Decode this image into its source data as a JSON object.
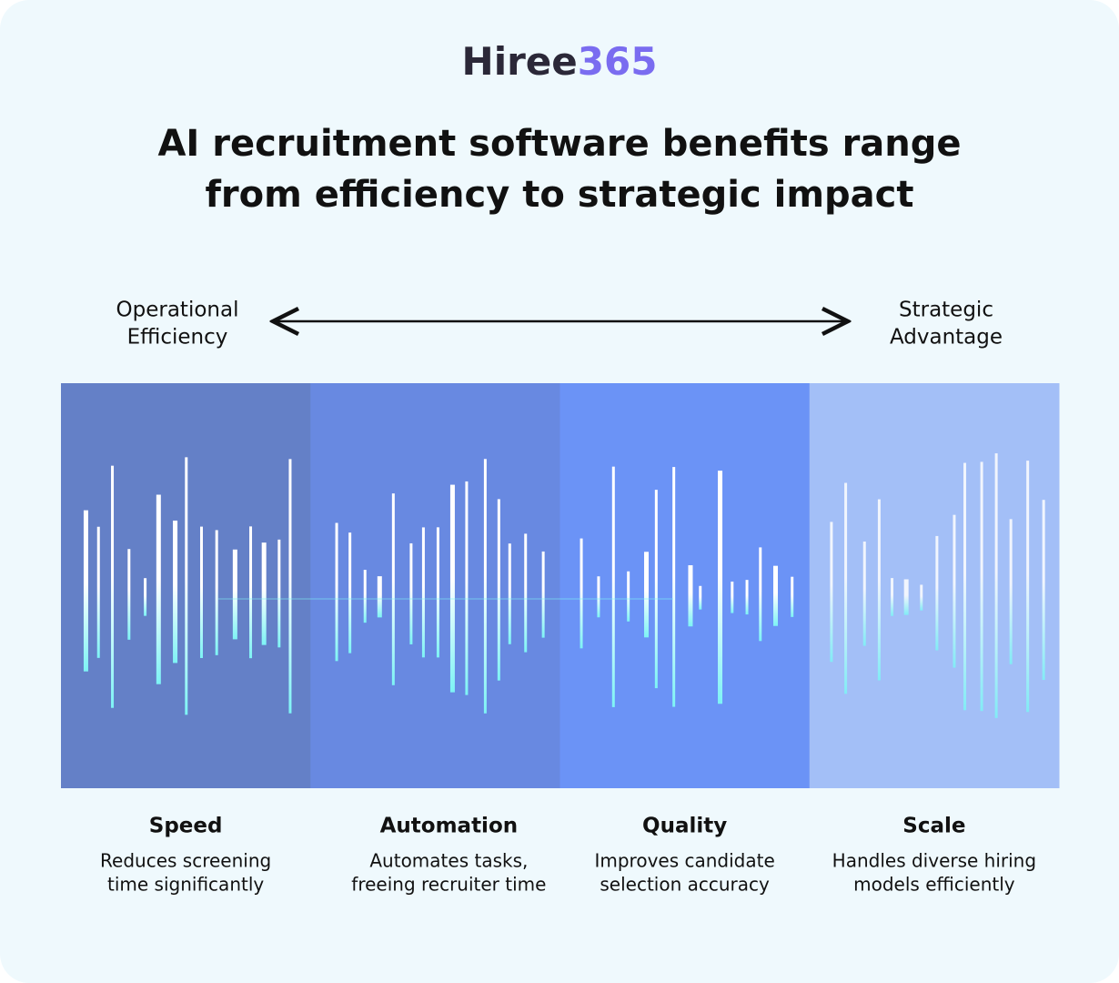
{
  "logo": {
    "name": "Hiree",
    "number": "365"
  },
  "title": [
    "AI recruitment software benefits range",
    "from efficiency to strategic impact"
  ],
  "scale": {
    "left": [
      "Operational",
      "Efficiency"
    ],
    "right": [
      "Strategic",
      "Advantage"
    ]
  },
  "segments": [
    {
      "title": "Speed",
      "description": [
        "Reduces screening",
        "time significantly"
      ]
    },
    {
      "title": "Automation",
      "description": [
        "Automates tasks,",
        "freeing recruiter time"
      ]
    },
    {
      "title": "Quality",
      "description": [
        "Improves candidate",
        "selection accuracy"
      ]
    },
    {
      "title": "Scale",
      "description": [
        "Handles diverse hiring",
        "models efficiently"
      ]
    }
  ]
}
